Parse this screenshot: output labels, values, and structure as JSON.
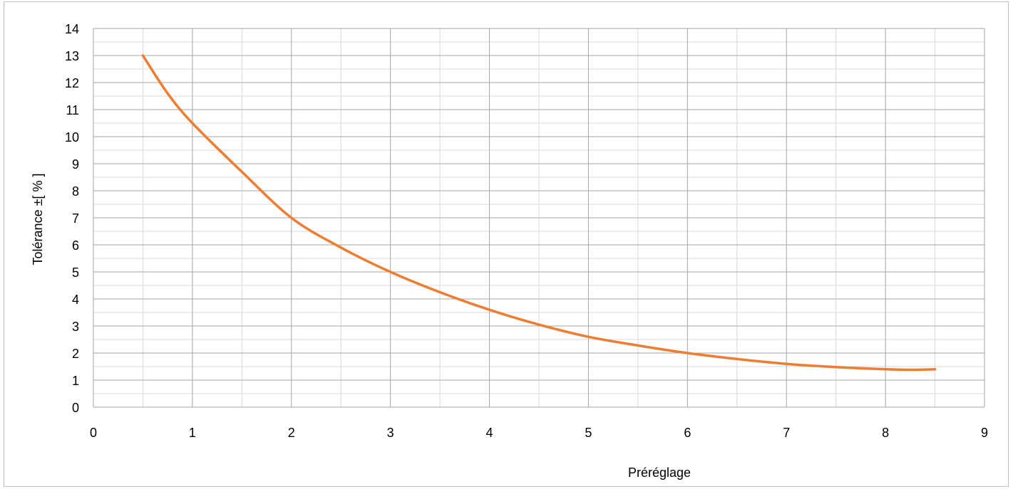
{
  "chart_data": {
    "type": "line",
    "title": "",
    "xlabel": "Préréglage",
    "ylabel": "Tolérance ±[ % ]",
    "xlim": [
      0,
      9
    ],
    "ylim": [
      0,
      14
    ],
    "x_ticks": [
      "0",
      "1",
      "2",
      "3",
      "4",
      "5",
      "6",
      "7",
      "8",
      "9"
    ],
    "y_ticks": [
      "0",
      "1",
      "2",
      "3",
      "4",
      "5",
      "6",
      "7",
      "8",
      "9",
      "10",
      "11",
      "12",
      "13",
      "14"
    ],
    "x_minor_step": 0.5,
    "y_minor_step": 0.5,
    "grid": true,
    "legend": false,
    "line_color": "#ED7D31",
    "series": [
      {
        "x": [
          0.5,
          0.75,
          1,
          1.5,
          2,
          2.5,
          3,
          3.5,
          4,
          4.5,
          5,
          5.5,
          6,
          6.5,
          7,
          7.5,
          8,
          8.25,
          8.5
        ],
        "values": [
          13,
          11.6,
          10.5,
          8.7,
          7,
          5.9,
          5,
          4.25,
          3.6,
          3.05,
          2.6,
          2.28,
          2,
          1.78,
          1.6,
          1.48,
          1.4,
          1.38,
          1.4
        ]
      }
    ]
  }
}
